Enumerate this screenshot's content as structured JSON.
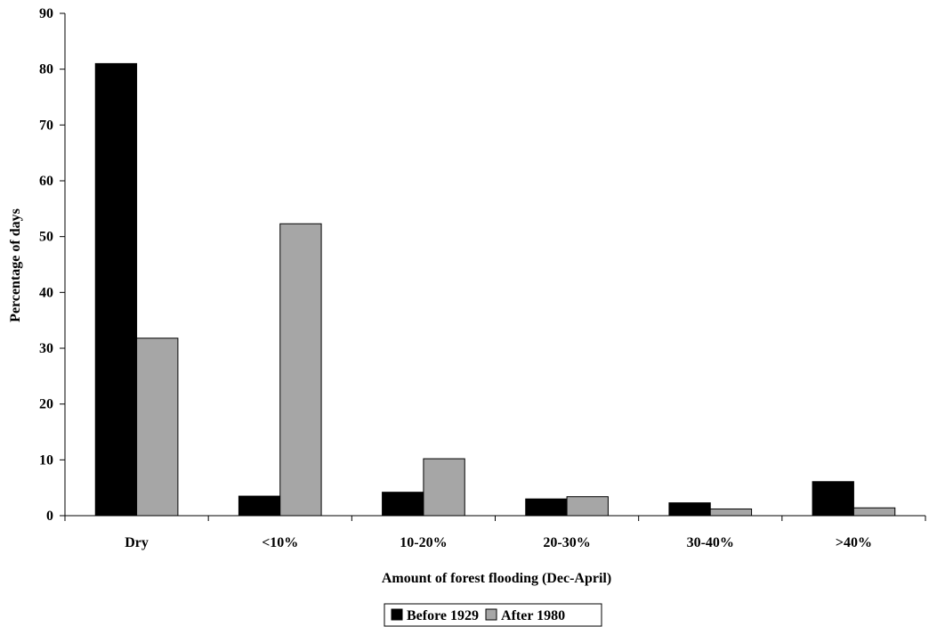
{
  "chart_data": {
    "type": "bar",
    "title": "",
    "xlabel": "Amount of forest flooding (Dec-April)",
    "ylabel": "Percentage of days",
    "ylim": [
      0,
      90
    ],
    "yticks": [
      0,
      10,
      20,
      30,
      40,
      50,
      60,
      70,
      80,
      90
    ],
    "categories": [
      "Dry",
      "<10%",
      "10-20%",
      "20-30%",
      "30-40%",
      ">40%"
    ],
    "series": [
      {
        "name": "Before 1929",
        "color": "#000000",
        "values": [
          81,
          3.5,
          4.2,
          3.0,
          2.3,
          6.1
        ]
      },
      {
        "name": "After 1980",
        "color": "#a6a6a6",
        "values": [
          31.8,
          52.3,
          10.2,
          3.4,
          1.2,
          1.4
        ]
      }
    ],
    "grid": false,
    "legend_position": "bottom-center"
  }
}
